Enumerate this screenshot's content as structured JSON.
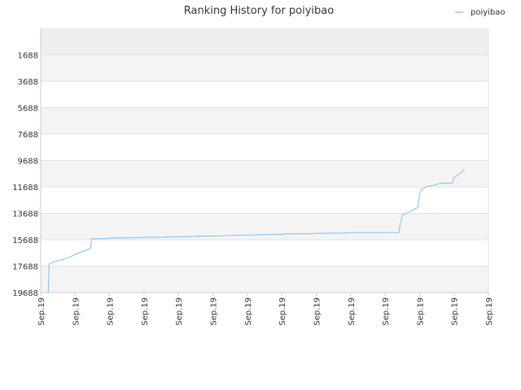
{
  "chart_data": {
    "type": "line",
    "title": "Ranking History for poiyibao",
    "xlabel": "",
    "ylabel": "",
    "y_inverted": true,
    "ylim": [
      19688,
      -312
    ],
    "y_ticks": [
      "1688",
      "3688",
      "5688",
      "7688",
      "9688",
      "11688",
      "13688",
      "15688",
      "17688",
      "19688"
    ],
    "y_tick_values": [
      1688,
      3688,
      5688,
      7688,
      9688,
      11688,
      13688,
      15688,
      17688,
      19688
    ],
    "x_ticks": [
      "Sep.19",
      "Sep.19",
      "Sep.19",
      "Sep.19",
      "Sep.19",
      "Sep.19",
      "Sep.19",
      "Sep.19",
      "Sep.19",
      "Sep.19",
      "Sep.19",
      "Sep.19",
      "Sep.19",
      "Sep.19"
    ],
    "xlim": [
      0,
      13
    ],
    "grid": "horizontal alternating bands",
    "legend_position": "top-right",
    "series": [
      {
        "name": "poiyibao",
        "color": "#90c8f0",
        "x": [
          0.22,
          0.24,
          0.35,
          0.7,
          1.1,
          1.45,
          1.46,
          1.48,
          1.9,
          2.0,
          2.8,
          2.9,
          3.6,
          3.7,
          4.5,
          4.6,
          5.3,
          5.4,
          6.2,
          6.3,
          7.0,
          7.1,
          7.9,
          8.0,
          8.8,
          9.0,
          10.4,
          10.45,
          10.5,
          10.95,
          11.0,
          11.05,
          11.2,
          11.4,
          11.6,
          11.95,
          12.0,
          12.3
        ],
        "y": [
          19688,
          17555,
          17400,
          17150,
          16700,
          16350,
          15950,
          15610,
          15600,
          15560,
          15540,
          15510,
          15500,
          15470,
          15450,
          15420,
          15400,
          15360,
          15330,
          15300,
          15280,
          15250,
          15230,
          15200,
          15190,
          15150,
          15150,
          14400,
          13850,
          13250,
          12300,
          11900,
          11680,
          11580,
          11420,
          11400,
          11000,
          10400
        ]
      }
    ]
  }
}
